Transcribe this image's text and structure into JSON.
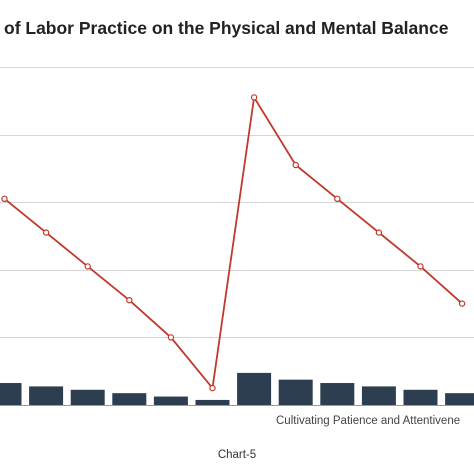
{
  "chart_data": {
    "type": "bar+line",
    "title": "of Labor Practice on the Physical and Mental Balance",
    "footer": "Chart-5",
    "visible_category_label": "Cultivating Patience and Attentivene",
    "grid": true,
    "legend": "none",
    "ylim": [
      0,
      10
    ],
    "series": [
      {
        "type": "line",
        "color": "#c0392b",
        "values": [
          6.1,
          5.1,
          4.1,
          3.1,
          2.0,
          0.5,
          9.1,
          7.1,
          6.1,
          5.1,
          4.1,
          3.0
        ]
      },
      {
        "type": "bar",
        "color": "#2c3e50",
        "values": [
          0.65,
          0.55,
          0.45,
          0.35,
          0.25,
          0.15,
          0.95,
          0.75,
          0.65,
          0.55,
          0.45,
          0.35
        ]
      }
    ]
  }
}
